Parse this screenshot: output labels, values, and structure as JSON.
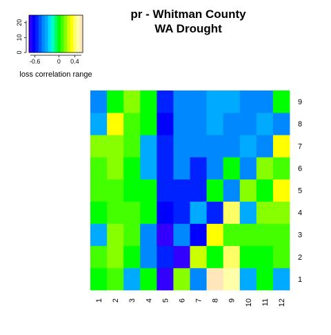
{
  "chart_data": {
    "type": "heatmap",
    "title": [
      "pr - Whitman County",
      "WA Drought"
    ],
    "x": [
      "1",
      "2",
      "3",
      "4",
      "5",
      "6",
      "7",
      "8",
      "9",
      "10",
      "11",
      "12"
    ],
    "y": [
      "1",
      "2",
      "3",
      "4",
      "5",
      "6",
      "7",
      "8",
      "9"
    ],
    "values": [
      [
        0.0,
        0.1,
        -0.3,
        0.0,
        -0.75,
        0.2,
        -0.4,
        0.6,
        0.5,
        -0.3,
        0.0,
        -0.3
      ],
      [
        0.05,
        0.15,
        0.0,
        -0.4,
        -0.55,
        -0.8,
        0.25,
        0.0,
        0.4,
        0.0,
        0.0,
        0.05
      ],
      [
        -0.3,
        0.2,
        0.05,
        -0.4,
        -0.7,
        -0.4,
        -0.65,
        0.3,
        0.05,
        0.05,
        0.05,
        0.05
      ],
      [
        0.0,
        0.05,
        0.05,
        0.0,
        -0.65,
        -0.55,
        -0.3,
        -0.55,
        0.4,
        -0.3,
        0.2,
        0.2
      ],
      [
        0.05,
        0.05,
        0.0,
        0.0,
        -0.55,
        -0.55,
        -0.55,
        0.0,
        -0.4,
        0.2,
        0.0,
        0.3
      ],
      [
        0.05,
        0.15,
        0.0,
        -0.3,
        -0.55,
        -0.4,
        -0.55,
        -0.4,
        0.0,
        -0.4,
        0.15,
        0.05
      ],
      [
        0.2,
        0.2,
        0.05,
        -0.3,
        -0.55,
        -0.4,
        -0.4,
        -0.4,
        -0.4,
        -0.3,
        -0.4,
        0.3
      ],
      [
        -0.3,
        0.3,
        0.05,
        0.0,
        -0.65,
        -0.4,
        -0.4,
        -0.3,
        -0.4,
        -0.4,
        -0.3,
        -0.4
      ],
      [
        -0.4,
        0.0,
        0.15,
        0.0,
        -0.55,
        -0.4,
        -0.4,
        -0.3,
        -0.3,
        -0.4,
        -0.4,
        0.0
      ]
    ],
    "colorbar": {
      "label": "loss correlation range",
      "ticks": [
        "-0.6",
        "0",
        "0.4"
      ],
      "tick_values": [
        -0.6,
        0,
        0.4
      ],
      "range": [
        -0.75,
        0.6
      ],
      "count_ticks": [
        "0",
        "10",
        "20"
      ],
      "count_tick_values": [
        0,
        10,
        20
      ],
      "count_range": [
        0,
        25
      ],
      "colors": [
        "#3300ff",
        "#0000ff",
        "#0022ff",
        "#0055ff",
        "#0088ff",
        "#00aaff",
        "#00ddff",
        "#00ffcc",
        "#00ff66",
        "#00ff00",
        "#44ff00",
        "#88ff00",
        "#ccff00",
        "#ffff00",
        "#ffff66",
        "#ffffaa",
        "#ffe6bb"
      ]
    }
  }
}
